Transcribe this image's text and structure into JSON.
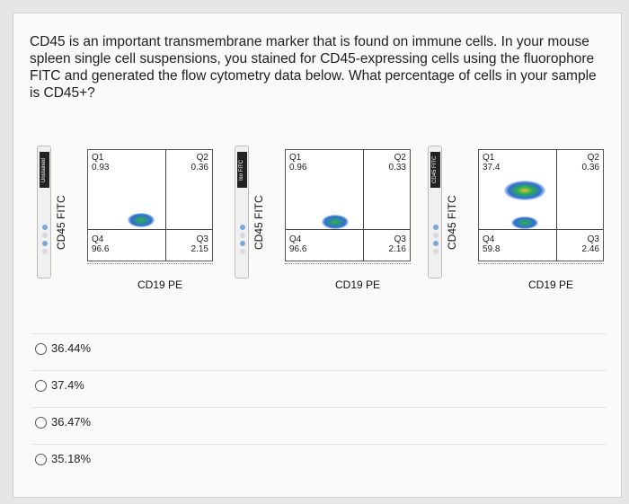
{
  "question": "CD45 is an important transmembrane marker that is found on immune cells. In your mouse spleen single cell suspensions, you stained for CD45-expressing cells using the fluorophore FITC and generated the flow cytometry data below. What percentage of cells in your sample is CD45+?",
  "panels": [
    {
      "strip_label": "Unstained",
      "y_axis": "CD45 FITC",
      "x_axis": "CD19 PE",
      "q1": "Q1",
      "q1_value": "0.93",
      "q2": "Q2",
      "q2_value": "0.36",
      "q3": "Q3",
      "q3_value": "2.15",
      "q4": "Q4",
      "q4_value": "96.6"
    },
    {
      "strip_label": "Iso FITC",
      "y_axis": "CD45 FITC",
      "x_axis": "CD19 PE",
      "q1": "Q1",
      "q1_value": "0.96",
      "q2": "Q2",
      "q2_value": "0.33",
      "q3": "Q3",
      "q3_value": "2.16",
      "q4": "Q4",
      "q4_value": "96.6"
    },
    {
      "strip_label": "CD45 FITC",
      "y_axis": "CD45 FITC",
      "x_axis": "CD19 PE",
      "q1": "Q1",
      "q1_value": "37.4",
      "q2": "Q2",
      "q2_value": "0.36",
      "q3": "Q3",
      "q3_value": "2.46",
      "q4": "Q4",
      "q4_value": "59.8"
    }
  ],
  "options": [
    "36.44%",
    "37.4%",
    "36.47%",
    "35.18%"
  ],
  "colors": {
    "cluster": "#2f6fd6",
    "cluster_core": "#2fb04a",
    "cluster_warm": "#e0c23a"
  }
}
